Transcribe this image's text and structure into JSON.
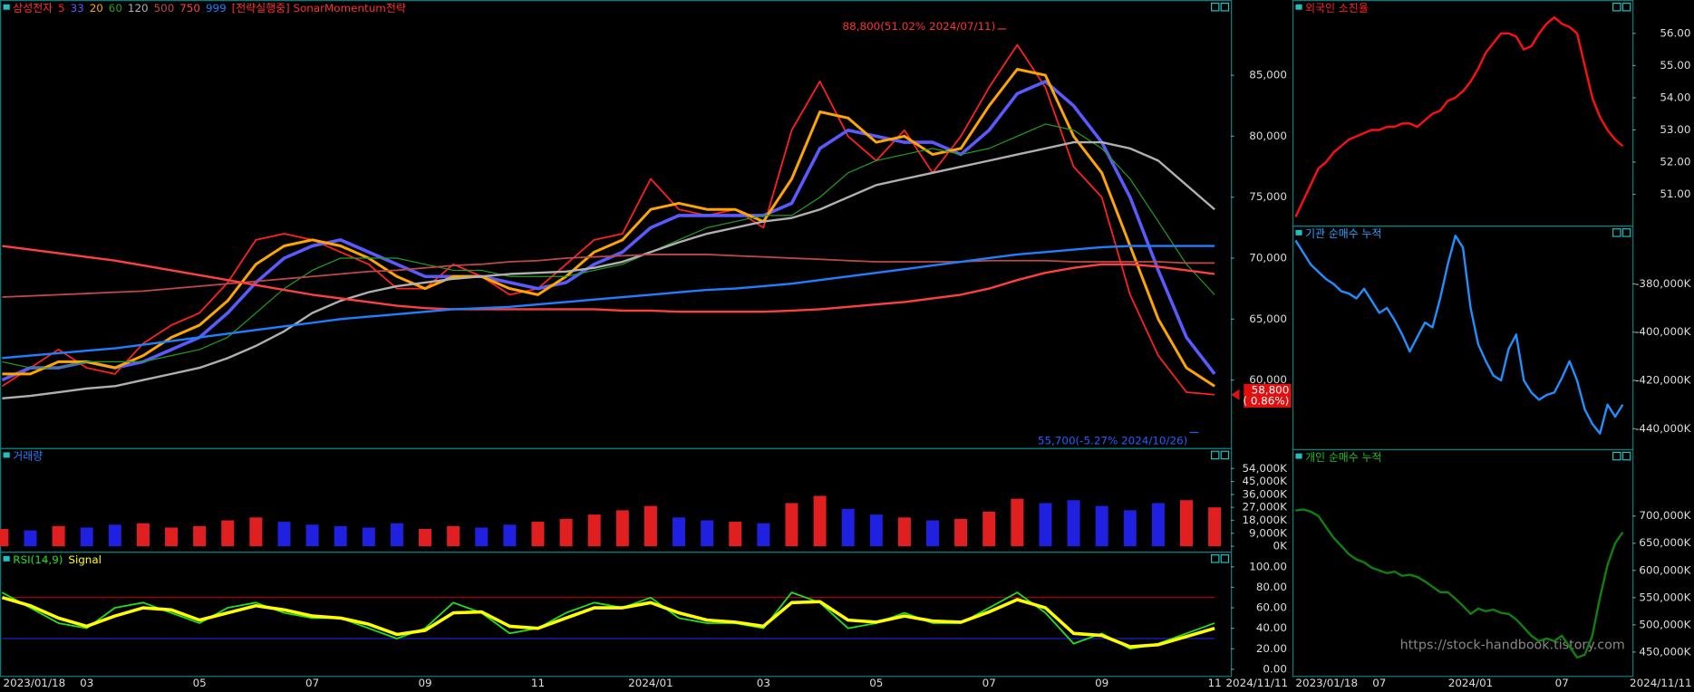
{
  "chart_data": [
    {
      "type": "line",
      "title": "삼성전자",
      "title_color": "#ff3030",
      "strategy": "[전략실행중] SonarMomentum전략",
      "categories": [
        "2023/01/18",
        null,
        null,
        "03",
        null,
        null,
        null,
        "05",
        null,
        null,
        null,
        "07",
        null,
        null,
        null,
        "09",
        null,
        null,
        null,
        "11",
        null,
        null,
        null,
        "2024/01",
        null,
        null,
        null,
        "03",
        null,
        null,
        null,
        "05",
        null,
        null,
        null,
        "07",
        null,
        null,
        null,
        "09",
        null,
        null,
        null,
        "11"
      ],
      "end_label": "2024/11/11",
      "series": [
        {
          "name": "5",
          "color": "#ff2020",
          "line_width": 1.5,
          "values": [
            59500,
            61000,
            62500,
            61000,
            60500,
            63000,
            64500,
            65500,
            68000,
            71500,
            72000,
            71500,
            70500,
            69500,
            67500,
            67500,
            69500,
            68500,
            67000,
            67500,
            69500,
            71500,
            72000,
            76500,
            74000,
            73500,
            74000,
            72500,
            80500,
            84500,
            80000,
            78000,
            80500,
            77000,
            80000,
            84000,
            87500,
            84000,
            77500,
            75000,
            67000,
            62000,
            59000,
            58800
          ]
        },
        {
          "name": "33",
          "color": "#5a5aff",
          "line_width": 3,
          "values": [
            60000,
            61000,
            61000,
            61500,
            61000,
            61500,
            62500,
            63500,
            65500,
            68000,
            70000,
            71000,
            71500,
            70500,
            69500,
            68500,
            68500,
            68500,
            68000,
            67500,
            68000,
            69500,
            70500,
            72500,
            73500,
            73500,
            73500,
            73500,
            74500,
            79000,
            80500,
            80000,
            79500,
            79500,
            78500,
            80500,
            83500,
            84500,
            82500,
            79500,
            75000,
            69000,
            63500,
            60500
          ]
        },
        {
          "name": "20",
          "color": "#ffa500",
          "line_width": 2.5,
          "values": [
            60500,
            60500,
            61500,
            61500,
            61000,
            62000,
            63500,
            64500,
            66500,
            69500,
            71000,
            71500,
            71000,
            70000,
            68500,
            67500,
            68500,
            68500,
            67500,
            67000,
            68500,
            70500,
            71500,
            74000,
            74500,
            74000,
            74000,
            73000,
            76500,
            82000,
            81500,
            79500,
            80000,
            78500,
            79000,
            82500,
            85500,
            85000,
            80000,
            77000,
            71000,
            65000,
            61000,
            59500
          ]
        },
        {
          "name": "60",
          "color": "#20a020",
          "line_width": 1,
          "values": [
            61500,
            61000,
            61000,
            61500,
            61500,
            61500,
            62000,
            62500,
            63500,
            65500,
            67500,
            69000,
            70000,
            70000,
            70000,
            69500,
            69000,
            69000,
            68500,
            68500,
            68500,
            69000,
            69500,
            70500,
            71500,
            72500,
            73000,
            73500,
            73500,
            75000,
            77000,
            78000,
            78500,
            79000,
            78500,
            79000,
            80000,
            81000,
            80500,
            79000,
            76500,
            73000,
            69500,
            67000
          ]
        },
        {
          "name": "120",
          "color": "#b0b0b0",
          "line_width": 2,
          "values": [
            58500,
            58700,
            59000,
            59300,
            59500,
            60000,
            60500,
            61000,
            61800,
            62800,
            64000,
            65500,
            66500,
            67200,
            67700,
            68000,
            68300,
            68500,
            68700,
            68800,
            68900,
            69200,
            69700,
            70500,
            71300,
            72000,
            72500,
            73000,
            73300,
            74000,
            75000,
            76000,
            76500,
            77000,
            77500,
            78000,
            78500,
            79000,
            79500,
            79500,
            79000,
            78000,
            76000,
            74000
          ]
        },
        {
          "name": "500",
          "color": "#c04848",
          "line_width": 1.5,
          "values": [
            66800,
            66900,
            67000,
            67100,
            67200,
            67300,
            67500,
            67700,
            67900,
            68100,
            68300,
            68500,
            68700,
            68900,
            69000,
            69200,
            69400,
            69500,
            69700,
            69800,
            70000,
            70100,
            70200,
            70300,
            70300,
            70300,
            70200,
            70100,
            70000,
            69900,
            69800,
            69700,
            69700,
            69700,
            69700,
            69800,
            69800,
            69800,
            69700,
            69700,
            69700,
            69700,
            69600,
            69600
          ]
        },
        {
          "name": "750",
          "color": "#ff4040",
          "line_width": 2,
          "values": [
            71000,
            70700,
            70400,
            70100,
            69800,
            69400,
            69000,
            68600,
            68200,
            67800,
            67400,
            67000,
            66700,
            66400,
            66100,
            65900,
            65800,
            65800,
            65800,
            65800,
            65800,
            65800,
            65700,
            65700,
            65600,
            65600,
            65600,
            65600,
            65700,
            65800,
            66000,
            66200,
            66400,
            66700,
            67000,
            67500,
            68200,
            68800,
            69200,
            69500,
            69500,
            69300,
            69000,
            68700
          ]
        },
        {
          "name": "999",
          "color": "#1e7fff",
          "line_width": 2,
          "values": [
            61800,
            62000,
            62200,
            62400,
            62600,
            62900,
            63200,
            63500,
            63800,
            64100,
            64400,
            64700,
            65000,
            65200,
            65400,
            65600,
            65800,
            65900,
            66000,
            66200,
            66400,
            66600,
            66800,
            67000,
            67200,
            67400,
            67500,
            67700,
            67900,
            68200,
            68500,
            68800,
            69100,
            69400,
            69700,
            70000,
            70300,
            70500,
            70700,
            70900,
            71000,
            71000,
            71000,
            71000
          ]
        }
      ],
      "ylim": [
        54600,
        91000
      ],
      "yticks": [
        {
          "value": 60000,
          "label": "60,000"
        },
        {
          "value": 65000,
          "label": "65,000"
        },
        {
          "value": 70000,
          "label": "70,000"
        },
        {
          "value": 75000,
          "label": "75,000"
        },
        {
          "value": 80000,
          "label": "80,000"
        },
        {
          "value": 85000,
          "label": "85,000"
        }
      ],
      "annotations": [
        {
          "value": 88800,
          "label": "88,800(51.02% 2024/07/11)",
          "color": "#ff3030"
        },
        {
          "value": 55700,
          "label": "55,700(-5.27% 2024/10/26)",
          "color": "#2060ff"
        }
      ],
      "current": {
        "value": 58800,
        "label": "58,800",
        "change": "( 0.86%)",
        "color": "#e01010"
      }
    },
    {
      "type": "bar",
      "title": "거래량",
      "title_color": "#2080ff",
      "values": [
        12000,
        11000,
        14000,
        13000,
        15000,
        16000,
        13000,
        14000,
        18000,
        20000,
        17000,
        15000,
        14000,
        13000,
        16000,
        12000,
        14000,
        13000,
        15000,
        17000,
        19000,
        22000,
        25000,
        28000,
        20000,
        18000,
        17000,
        16000,
        30000,
        35000,
        26000,
        22000,
        20000,
        18000,
        19000,
        24000,
        33000,
        30000,
        32000,
        28000,
        25000,
        30000,
        32000,
        27000
      ],
      "colors": [
        "#e02020",
        "#2020e0",
        "#e02020",
        "#2020e0",
        "#2020e0",
        "#e02020",
        "#e02020",
        "#e02020",
        "#e02020",
        "#e02020",
        "#2020e0",
        "#2020e0",
        "#2020e0",
        "#2020e0",
        "#2020e0",
        "#e02020",
        "#e02020",
        "#2020e0",
        "#2020e0",
        "#e02020",
        "#e02020",
        "#e02020",
        "#e02020",
        "#e02020",
        "#2020e0",
        "#2020e0",
        "#e02020",
        "#2020e0",
        "#e02020",
        "#e02020",
        "#2020e0",
        "#2020e0",
        "#e02020",
        "#2020e0",
        "#e02020",
        "#e02020",
        "#e02020",
        "#2020e0",
        "#2020e0",
        "#2020e0",
        "#2020e0",
        "#2020e0",
        "#e02020",
        "#e02020"
      ],
      "ylim": [
        0,
        66750
      ],
      "yticks": [
        {
          "value": 0,
          "label": "0K"
        },
        {
          "value": 9000,
          "label": "9,000K"
        },
        {
          "value": 18000,
          "label": "18,000K"
        },
        {
          "value": 27000,
          "label": "27,000K"
        },
        {
          "value": 36000,
          "label": "36,000K"
        },
        {
          "value": 45000,
          "label": "45,000K"
        },
        {
          "value": 54000,
          "label": "54,000K"
        }
      ]
    },
    {
      "type": "line",
      "title_color": "#20ff20",
      "series": [
        {
          "name": "RSI(14,9)",
          "color": "#20e020",
          "line_width": 1.5,
          "values": [
            75,
            60,
            45,
            40,
            60,
            65,
            55,
            45,
            60,
            65,
            55,
            50,
            50,
            40,
            30,
            40,
            65,
            55,
            35,
            40,
            55,
            65,
            60,
            70,
            50,
            45,
            45,
            40,
            75,
            65,
            40,
            45,
            55,
            45,
            45,
            60,
            75,
            55,
            25,
            35,
            20,
            25,
            35,
            45
          ]
        },
        {
          "name": "Signal",
          "color": "#ffff00",
          "line_width": 3,
          "values": [
            70,
            62,
            50,
            42,
            52,
            60,
            58,
            48,
            55,
            62,
            58,
            52,
            50,
            44,
            34,
            38,
            55,
            56,
            42,
            40,
            50,
            60,
            60,
            65,
            55,
            48,
            46,
            42,
            65,
            66,
            48,
            46,
            52,
            47,
            46,
            56,
            68,
            60,
            35,
            33,
            22,
            24,
            32,
            40
          ]
        }
      ],
      "levels": [
        {
          "value": 70,
          "color": "#c00000"
        },
        {
          "value": 30,
          "color": "#2020d0"
        }
      ],
      "ylim": [
        -5.3,
        111.6
      ],
      "yticks": [
        {
          "value": 0,
          "label": "0.00"
        },
        {
          "value": 20,
          "label": "20.00"
        },
        {
          "value": 40,
          "label": "40.00"
        },
        {
          "value": 60,
          "label": "60.00"
        },
        {
          "value": 80,
          "label": "80.00"
        },
        {
          "value": 100,
          "label": "100.00"
        }
      ]
    },
    {
      "type": "line",
      "title": "외국인 소진율",
      "title_color": "#ff2020",
      "categories": [
        "2023/01/18",
        null,
        null,
        null,
        null,
        null,
        null,
        null,
        null,
        null,
        null,
        "07",
        null,
        null,
        null,
        null,
        null,
        null,
        null,
        null,
        null,
        null,
        null,
        "2024/01",
        null,
        null,
        null,
        null,
        null,
        null,
        null,
        null,
        null,
        null,
        null,
        "07",
        null,
        null,
        null,
        null,
        null,
        null,
        null,
        null
      ],
      "end_label": "2024/11/11",
      "series": [
        {
          "name": "외국인 소진율",
          "color": "#ff1010",
          "line_width": 2,
          "values": [
            50.3,
            50.8,
            51.3,
            51.8,
            52.0,
            52.3,
            52.5,
            52.7,
            52.8,
            52.9,
            53.0,
            53.0,
            53.1,
            53.1,
            53.2,
            53.2,
            53.1,
            53.3,
            53.5,
            53.6,
            53.9,
            54.0,
            54.2,
            54.5,
            54.9,
            55.4,
            55.7,
            56.0,
            56.0,
            55.9,
            55.5,
            55.6,
            56.0,
            56.3,
            56.5,
            56.3,
            56.2,
            56.0,
            55.0,
            54.0,
            53.4,
            53.0,
            52.7,
            52.5
          ]
        }
      ],
      "ylim": [
        50.06,
        56.97
      ],
      "yticks": [
        {
          "value": 51,
          "label": "51.00"
        },
        {
          "value": 52,
          "label": "52.00"
        },
        {
          "value": 53,
          "label": "53.00"
        },
        {
          "value": 54,
          "label": "54.00"
        },
        {
          "value": 55,
          "label": "55.00"
        },
        {
          "value": 56,
          "label": "56.00"
        }
      ]
    },
    {
      "type": "line",
      "title": "기관 순매수 누적",
      "title_color": "#30a0ff",
      "series": [
        {
          "name": "기관 순매수 누적",
          "color": "#2090ff",
          "line_width": 2,
          "values": [
            -362000,
            -367000,
            -372000,
            -375000,
            -378000,
            -380000,
            -383000,
            -384000,
            -386000,
            -382000,
            -387000,
            -392000,
            -390000,
            -395000,
            -401000,
            -408000,
            -402000,
            -396000,
            -398000,
            -386000,
            -372000,
            -360000,
            -365000,
            -390000,
            -405000,
            -412000,
            -418000,
            -420000,
            -407000,
            -401000,
            -420000,
            -425000,
            -428000,
            -426000,
            -425000,
            -419000,
            -412000,
            -420000,
            -432000,
            -438000,
            -442000,
            -430000,
            -435000,
            -430000
          ]
        }
      ],
      "ylim": [
        -448000,
        -356300
      ],
      "yticks": [
        {
          "value": -440000,
          "label": "-440,000K"
        },
        {
          "value": -420000,
          "label": "-420,000K"
        },
        {
          "value": -400000,
          "label": "-400,000K"
        },
        {
          "value": -380000,
          "label": "-380,000K"
        }
      ]
    },
    {
      "type": "line",
      "title": "개인 순매수 누적",
      "title_color": "#20c020",
      "series": [
        {
          "name": "개인 순매수 누적",
          "color": "#108010",
          "line_width": 2,
          "values": [
            710000,
            712000,
            708000,
            700000,
            680000,
            660000,
            645000,
            630000,
            620000,
            615000,
            605000,
            600000,
            595000,
            598000,
            590000,
            592000,
            588000,
            580000,
            570000,
            560000,
            560000,
            548000,
            535000,
            520000,
            530000,
            525000,
            528000,
            522000,
            520000,
            510000,
            495000,
            480000,
            470000,
            475000,
            470000,
            480000,
            460000,
            440000,
            445000,
            480000,
            550000,
            610000,
            650000,
            670000
          ]
        }
      ],
      "ylim": [
        408300,
        819000
      ],
      "yticks": [
        {
          "value": 450000,
          "label": "450,000K"
        },
        {
          "value": 500000,
          "label": "500,000K"
        },
        {
          "value": 550000,
          "label": "550,000K"
        },
        {
          "value": 600000,
          "label": "600,000K"
        },
        {
          "value": 650000,
          "label": "650,000K"
        },
        {
          "value": 700000,
          "label": "700,000K"
        }
      ]
    }
  ],
  "watermark": "https://stock-handbook.tistory.com"
}
